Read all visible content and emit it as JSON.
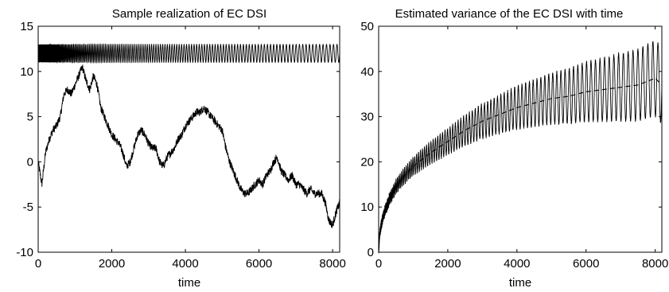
{
  "chart_data": [
    {
      "type": "line",
      "title": "Sample realization of EC DSI",
      "xlabel": "time",
      "ylabel": "",
      "xlim": [
        0,
        8192
      ],
      "ylim": [
        -10,
        15
      ],
      "xticks": [
        0,
        2000,
        4000,
        6000,
        8000
      ],
      "yticks": [
        -10,
        -5,
        0,
        5,
        10,
        15
      ],
      "grid": false,
      "legend": "none",
      "series": [
        {
          "description": "chirp-like oscillation between 11 and 13, frequency decreasing with time",
          "style": "solid",
          "center": 12,
          "amplitude": 1,
          "approx_cycles": 170,
          "x": [
            0,
            8192
          ]
        },
        {
          "description": "random-walk sample path",
          "style": "solid",
          "x": [
            0,
            100,
            200,
            300,
            400,
            500,
            600,
            700,
            800,
            900,
            1000,
            1100,
            1200,
            1300,
            1400,
            1500,
            1600,
            1700,
            1800,
            1900,
            2000,
            2100,
            2200,
            2300,
            2400,
            2500,
            2600,
            2700,
            2800,
            2900,
            3000,
            3100,
            3200,
            3300,
            3400,
            3500,
            3600,
            3700,
            3800,
            3900,
            4000,
            4100,
            4200,
            4300,
            4400,
            4500,
            4600,
            4700,
            4800,
            4900,
            5000,
            5100,
            5200,
            5300,
            5400,
            5500,
            5600,
            5700,
            5800,
            5900,
            6000,
            6100,
            6200,
            6300,
            6400,
            6500,
            6600,
            6700,
            6800,
            6900,
            7000,
            7100,
            7200,
            7300,
            7400,
            7500,
            7600,
            7700,
            7800,
            7900,
            8000,
            8100,
            8192
          ],
          "y": [
            0,
            -2.5,
            1,
            2.5,
            3.5,
            4,
            5,
            7.5,
            8,
            7.5,
            8.5,
            9.5,
            10.5,
            9,
            8,
            9.5,
            8.5,
            6,
            5,
            4,
            3,
            2.5,
            2,
            1,
            -0.5,
            0,
            1.5,
            3,
            3.5,
            3,
            2,
            1.5,
            1.5,
            0,
            -0.5,
            0.5,
            1,
            1.5,
            2.5,
            3,
            4,
            4.5,
            5,
            5.5,
            5.5,
            6,
            5.5,
            5,
            4.5,
            4,
            3.5,
            1.5,
            0,
            -1,
            -2,
            -3,
            -3.5,
            -3.5,
            -3,
            -2.5,
            -2,
            -2.5,
            -1.5,
            -1,
            0,
            0.5,
            -1,
            -1.5,
            -2,
            -1.5,
            -2.5,
            -2.5,
            -3,
            -3.5,
            -3,
            -3.5,
            -3.5,
            -3.5,
            -4.5,
            -6.5,
            -7,
            -5.5,
            -4.5
          ]
        }
      ]
    },
    {
      "type": "line",
      "title": "Estimated variance of the EC DSI with time",
      "xlabel": "time",
      "ylabel": "",
      "xlim": [
        0,
        8192
      ],
      "ylim": [
        0,
        50
      ],
      "xticks": [
        0,
        2000,
        4000,
        6000,
        8000
      ],
      "yticks": [
        0,
        10,
        20,
        30,
        40,
        50
      ],
      "grid": false,
      "legend": "none",
      "series": [
        {
          "description": "estimated variance, oscillating around the expected curve with growing amplitude",
          "style": "solid",
          "x": [
            0,
            25,
            50,
            100,
            200,
            300,
            400,
            500,
            700,
            1000,
            1500,
            2000,
            2500,
            3000,
            3500,
            4000,
            4500,
            5000,
            5500,
            6000,
            6500,
            7000,
            7500,
            8000,
            8192
          ],
          "y": [
            0,
            3.5,
            5,
            7,
            9.5,
            11.5,
            13,
            14.5,
            16.5,
            19,
            22,
            24.5,
            27,
            29,
            30.5,
            32,
            33,
            34,
            34.5,
            35.5,
            36,
            36.5,
            37,
            38.5,
            37
          ],
          "oscillation_amplitude_start": 1,
          "oscillation_amplitude_end": 8.5,
          "approx_cycles": 110
        },
        {
          "description": "expected variance",
          "style": "dashed",
          "x": [
            0,
            25,
            50,
            100,
            200,
            300,
            400,
            500,
            700,
            1000,
            1500,
            2000,
            2500,
            3000,
            3500,
            4000,
            4500,
            5000,
            5500,
            6000,
            6500,
            7000,
            7500,
            8000,
            8192
          ],
          "y": [
            0,
            3.5,
            5,
            7,
            9.5,
            11.5,
            13,
            14.5,
            16.5,
            19,
            22,
            24.5,
            27,
            29,
            30.5,
            32,
            33,
            34,
            34.5,
            35.5,
            36,
            36.5,
            37,
            38.5,
            37
          ]
        }
      ]
    }
  ]
}
